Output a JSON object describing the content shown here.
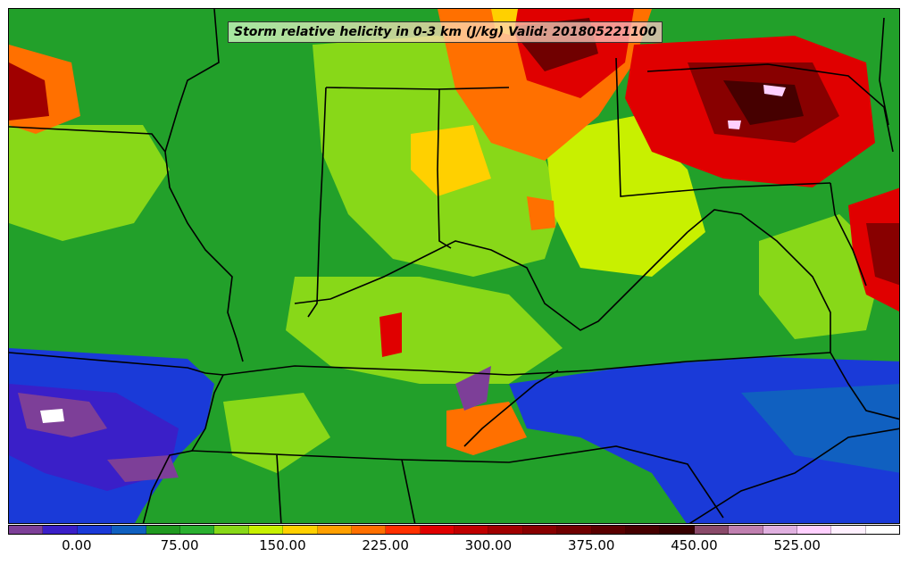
{
  "map": {
    "title": "Storm relative helicity in 0-3 km (J/kg) Valid: 201805221100",
    "colorbar": {
      "colors": [
        "#7d3f98",
        "#3a1fc8",
        "#1a3ad8",
        "#1060c0",
        "#209a20",
        "#2ab030",
        "#88d818",
        "#c8f000",
        "#ffd000",
        "#ffa000",
        "#ff7000",
        "#ff3000",
        "#e00000",
        "#c00000",
        "#a00000",
        "#880000",
        "#700000",
        "#5a0000",
        "#460000",
        "#360000",
        "#8a4a6a",
        "#c080b0",
        "#e0b0e0",
        "#ffd0ff",
        "#fff0ff",
        "#ffffff"
      ],
      "tick_labels": [
        "0.00",
        "75.00",
        "150.00",
        "225.00",
        "300.00",
        "375.00",
        "450.00",
        "525.00"
      ],
      "tick_values": [
        0,
        75,
        150,
        225,
        300,
        375,
        450,
        525
      ],
      "range": [
        -50,
        600
      ]
    }
  }
}
